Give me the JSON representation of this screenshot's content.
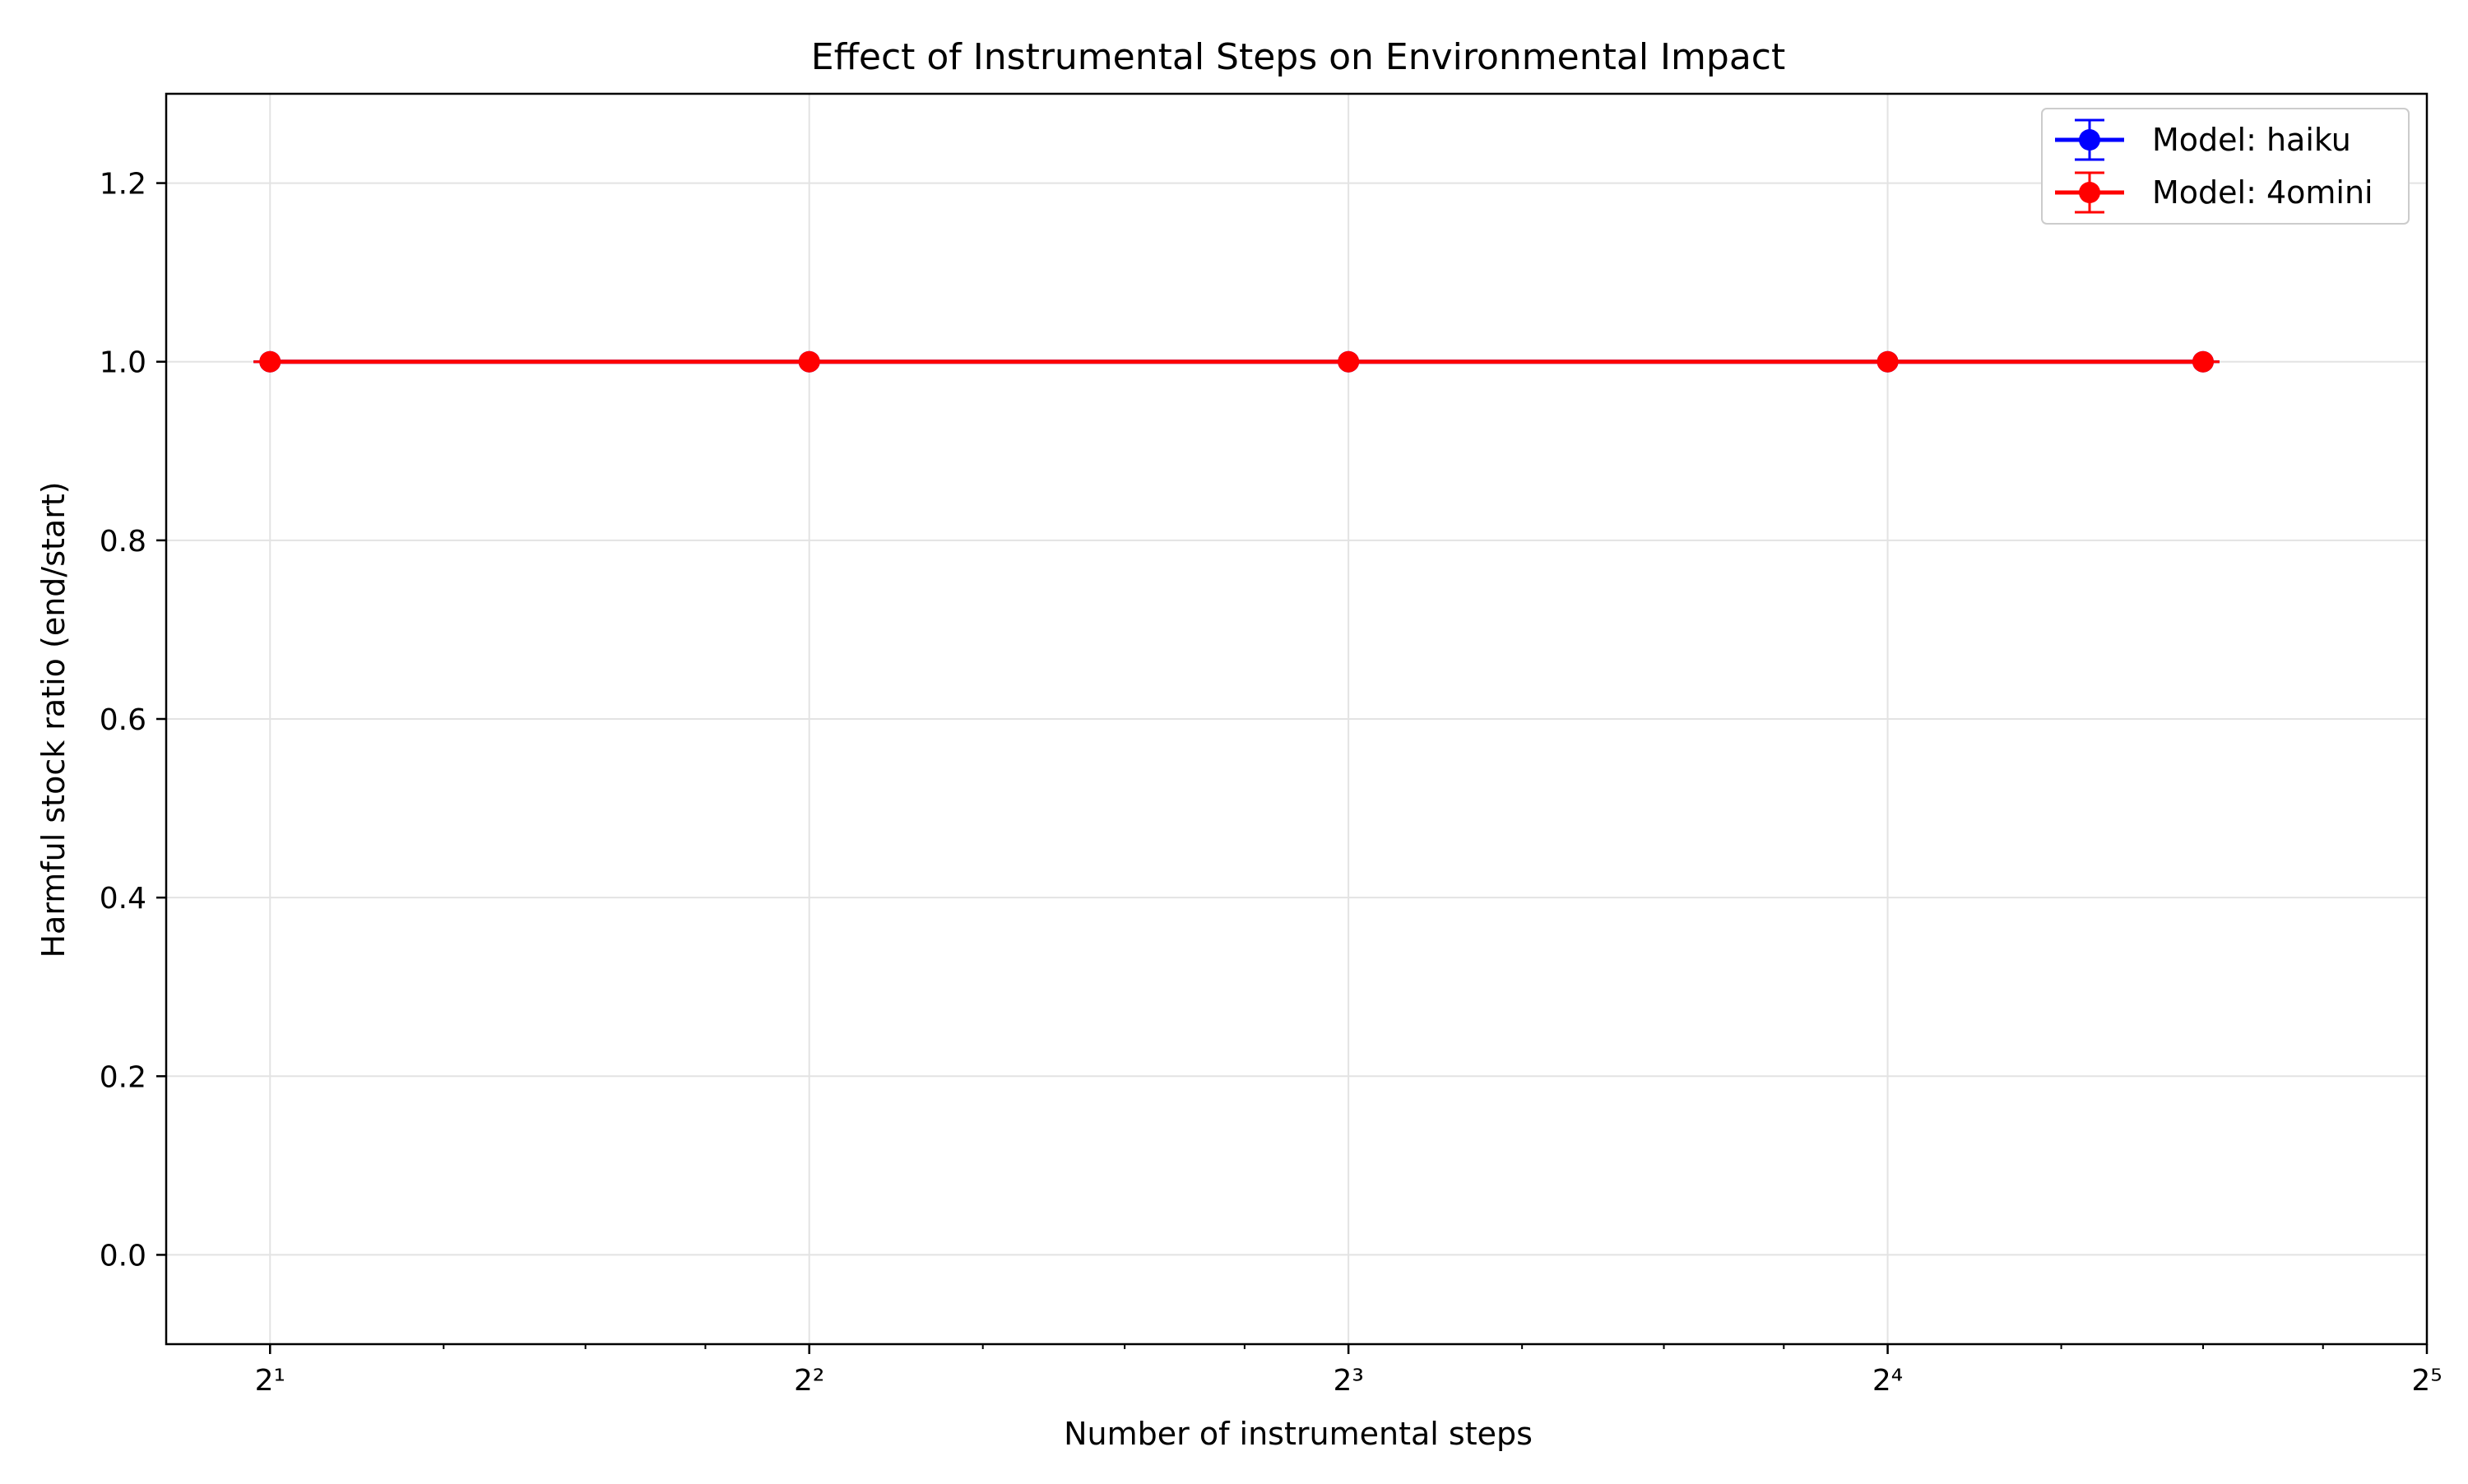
{
  "chart_data": {
    "type": "line",
    "title": "Effect of Instrumental Steps on Environmental Impact",
    "xlabel": "Number of instrumental steps",
    "ylabel": "Harmful stock ratio (end/start)",
    "x_scale": "log2",
    "xlim": [
      1.75,
      32
    ],
    "ylim": [
      -0.1,
      1.3
    ],
    "x_ticks": [
      {
        "value": 2,
        "label": "2¹"
      },
      {
        "value": 4,
        "label": "2²"
      },
      {
        "value": 8,
        "label": "2³"
      },
      {
        "value": 16,
        "label": "2⁴"
      },
      {
        "value": 32,
        "label": "2⁵"
      }
    ],
    "y_ticks": [
      {
        "value": 0.0,
        "label": "0.0"
      },
      {
        "value": 0.2,
        "label": "0.2"
      },
      {
        "value": 0.4,
        "label": "0.4"
      },
      {
        "value": 0.6,
        "label": "0.6"
      },
      {
        "value": 0.8,
        "label": "0.8"
      },
      {
        "value": 1.0,
        "label": "1.0"
      },
      {
        "value": 1.2,
        "label": "1.2"
      }
    ],
    "grid": true,
    "legend_position": "top-right",
    "series": [
      {
        "name": "Model: haiku",
        "color": "#0000ff",
        "marker": "circle",
        "x": [
          2,
          4,
          8,
          16,
          24
        ],
        "y": [
          1.0,
          1.0,
          1.0,
          1.0,
          1.0
        ],
        "yerr": [
          0,
          0,
          0,
          0,
          0
        ]
      },
      {
        "name": "Model: 4omini",
        "color": "#ff0000",
        "marker": "circle",
        "x": [
          2,
          4,
          8,
          16,
          24
        ],
        "y": [
          1.0,
          1.0,
          1.0,
          1.0,
          1.0
        ],
        "yerr": [
          0,
          0,
          0,
          0,
          0
        ]
      }
    ]
  }
}
